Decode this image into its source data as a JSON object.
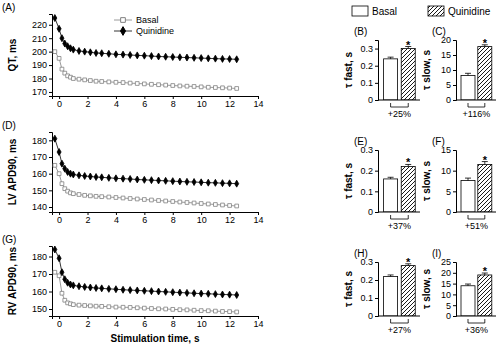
{
  "chart_data": [
    {
      "type": "line",
      "title": "(A)",
      "ylabel": "QT, ms",
      "legend": "top",
      "x": [
        -0.3,
        0,
        0.2,
        0.4,
        0.6,
        0.8,
        1,
        1.4,
        1.8,
        2.2,
        2.6,
        3,
        3.5,
        4,
        4.5,
        5,
        5.5,
        6,
        6.5,
        7,
        7.5,
        8,
        8.5,
        9,
        9.5,
        10,
        10.5,
        11,
        11.5,
        12,
        12.5
      ],
      "xlim": [
        -0.5,
        14
      ],
      "xticks": [
        0,
        2,
        4,
        6,
        8,
        10,
        12,
        14
      ],
      "ylim": [
        167,
        228
      ],
      "yticks": [
        170,
        180,
        190,
        200,
        210,
        220
      ],
      "series": [
        {
          "name": "Basal",
          "color": "#808080",
          "marker": "open-square",
          "values": [
            200,
            195,
            187,
            184,
            182,
            181,
            180,
            179.5,
            179,
            178.5,
            178,
            177.8,
            177.5,
            177.2,
            177,
            176.6,
            176.3,
            176,
            175.7,
            175.4,
            175.1,
            174.8,
            174.5,
            174.3,
            174.1,
            173.8,
            173.5,
            173.3,
            173.1,
            172.9,
            172.6
          ]
        },
        {
          "name": "Quinidine",
          "color": "#000000",
          "marker": "diamond",
          "values": [
            225,
            217,
            210,
            206,
            204,
            202.5,
            201.5,
            200.5,
            200,
            199.5,
            199,
            198.8,
            198.4,
            198,
            197.8,
            197.5,
            197.2,
            197,
            196.7,
            196.4,
            196.2,
            196,
            195.8,
            195.6,
            195.4,
            195.2,
            195,
            194.8,
            194.6,
            194.5,
            194.3
          ]
        }
      ]
    },
    {
      "type": "bar",
      "title": "(B)",
      "ylabel": "τ fast, s",
      "legend": "top",
      "ylim": [
        0,
        0.35
      ],
      "yticks": [
        0,
        0.1,
        0.2,
        0.3
      ],
      "series": [
        {
          "name": "Basal",
          "color": "#ffffff",
          "values": [
            0.24
          ],
          "errors": [
            0.01
          ]
        },
        {
          "name": "Quinidine",
          "color": "#000000",
          "values": [
            0.3
          ],
          "errors": [
            0.012
          ]
        }
      ],
      "annotations": [
        "*",
        "+25%"
      ]
    },
    {
      "type": "bar",
      "title": "(C)",
      "ylabel": "τ slow, s",
      "ylim": [
        0,
        20
      ],
      "yticks": [
        0,
        5,
        10,
        15,
        20
      ],
      "series": [
        {
          "color": "#ffffff",
          "values": [
            8.2
          ],
          "errors": [
            0.7
          ]
        },
        {
          "color": "#000000",
          "values": [
            17.8
          ],
          "errors": [
            0.6
          ]
        }
      ],
      "annotations": [
        "*",
        "+116%"
      ]
    },
    {
      "type": "line",
      "title": "(D)",
      "ylabel": "LV APD90, ms",
      "x": [
        -0.3,
        0,
        0.2,
        0.4,
        0.6,
        0.8,
        1,
        1.4,
        1.8,
        2.2,
        2.6,
        3,
        3.5,
        4,
        4.5,
        5,
        5.5,
        6,
        6.5,
        7,
        7.5,
        8,
        8.5,
        9,
        9.5,
        10,
        10.5,
        11,
        11.5,
        12,
        12.5
      ],
      "xlim": [
        -0.5,
        14
      ],
      "xticks": [
        0,
        2,
        4,
        6,
        8,
        10,
        12,
        14
      ],
      "ylim": [
        137,
        185
      ],
      "yticks": [
        140,
        150,
        160,
        170,
        180
      ],
      "series": [
        {
          "color": "#808080",
          "marker": "open-square",
          "values": [
            165,
            160,
            154,
            151,
            149.5,
            148.5,
            148,
            147.5,
            147,
            146.7,
            146.4,
            146.2,
            146,
            145.7,
            145.4,
            145.1,
            144.8,
            144.5,
            144.2,
            143.9,
            143.6,
            143.3,
            143,
            142.7,
            142.4,
            142.1,
            141.8,
            141.5,
            141.2,
            140.9,
            140.6
          ]
        },
        {
          "color": "#000000",
          "marker": "diamond",
          "values": [
            181,
            173,
            166,
            163,
            161,
            160,
            159.5,
            159,
            158.6,
            158.3,
            158,
            157.8,
            157.5,
            157.2,
            157,
            156.8,
            156.5,
            156.3,
            156.1,
            155.9,
            155.7,
            155.5,
            155.3,
            155.1,
            155,
            154.8,
            154.6,
            154.5,
            154.3,
            154.2,
            154
          ]
        }
      ]
    },
    {
      "type": "bar",
      "title": "(E)",
      "ylabel": "τ fast, s",
      "ylim": [
        0,
        0.3
      ],
      "yticks": [
        0,
        0.1,
        0.2,
        0.3
      ],
      "series": [
        {
          "color": "#ffffff",
          "values": [
            0.16
          ],
          "errors": [
            0.008
          ]
        },
        {
          "color": "#000000",
          "values": [
            0.22
          ],
          "errors": [
            0.01
          ]
        }
      ],
      "annotations": [
        "*",
        "+37%"
      ]
    },
    {
      "type": "bar",
      "title": "(F)",
      "ylabel": "τ slow, s",
      "ylim": [
        0,
        15
      ],
      "yticks": [
        0,
        5,
        10,
        15
      ],
      "series": [
        {
          "color": "#ffffff",
          "values": [
            7.6
          ],
          "errors": [
            0.6
          ]
        },
        {
          "color": "#000000",
          "values": [
            11.5
          ],
          "errors": [
            0.7
          ]
        }
      ],
      "annotations": [
        "*",
        "+51%"
      ]
    },
    {
      "type": "line",
      "title": "(G)",
      "ylabel": "RV APD90, ms",
      "xlabel": "Stimulation time, s",
      "x": [
        -0.3,
        0,
        0.2,
        0.4,
        0.6,
        0.8,
        1,
        1.4,
        1.8,
        2.2,
        2.6,
        3,
        3.5,
        4,
        4.5,
        5,
        5.5,
        6,
        6.5,
        7,
        7.5,
        8,
        8.5,
        9,
        9.5,
        10,
        10.5,
        11,
        11.5,
        12,
        12.5
      ],
      "xlim": [
        -0.5,
        14
      ],
      "xticks": [
        0,
        2,
        4,
        6,
        8,
        10,
        12,
        14
      ],
      "ylim": [
        146,
        186
      ],
      "yticks": [
        150,
        160,
        170,
        180
      ],
      "series": [
        {
          "color": "#808080",
          "marker": "open-square",
          "values": [
            171,
            169,
            159,
            155,
            153.5,
            153,
            152.5,
            152.2,
            152,
            151.8,
            151.6,
            151.5,
            151.3,
            151.1,
            151,
            150.9,
            150.7,
            150.5,
            150.3,
            150.1,
            150,
            149.8,
            149.6,
            149.5,
            149.3,
            149.1,
            149,
            148.8,
            148.6,
            148.5,
            148.3
          ]
        },
        {
          "color": "#000000",
          "marker": "diamond",
          "values": [
            184,
            179,
            171,
            167,
            165,
            164,
            163.5,
            163,
            162.6,
            162.3,
            162,
            161.8,
            161.5,
            161.3,
            161,
            160.8,
            160.6,
            160.4,
            160.2,
            160,
            159.8,
            159.6,
            159.4,
            159.2,
            159,
            158.8,
            158.7,
            158.5,
            158.3,
            158.2,
            158
          ]
        }
      ]
    },
    {
      "type": "bar",
      "title": "(H)",
      "ylabel": "τ fast, s",
      "ylim": [
        0,
        0.3
      ],
      "yticks": [
        0,
        0.1,
        0.2,
        0.3
      ],
      "series": [
        {
          "color": "#ffffff",
          "values": [
            0.22
          ],
          "errors": [
            0.008
          ]
        },
        {
          "color": "#000000",
          "values": [
            0.28
          ],
          "errors": [
            0.01
          ]
        }
      ],
      "annotations": [
        "*",
        "+27%"
      ]
    },
    {
      "type": "bar",
      "title": "(I)",
      "ylabel": "τ slow, s",
      "ylim": [
        0,
        25
      ],
      "yticks": [
        0,
        5,
        10,
        15,
        20,
        25
      ],
      "series": [
        {
          "color": "#ffffff",
          "values": [
            14
          ],
          "errors": [
            0.8
          ]
        },
        {
          "color": "#000000",
          "values": [
            19
          ],
          "errors": [
            0.9
          ]
        }
      ],
      "annotations": [
        "*",
        "+36%"
      ]
    }
  ]
}
